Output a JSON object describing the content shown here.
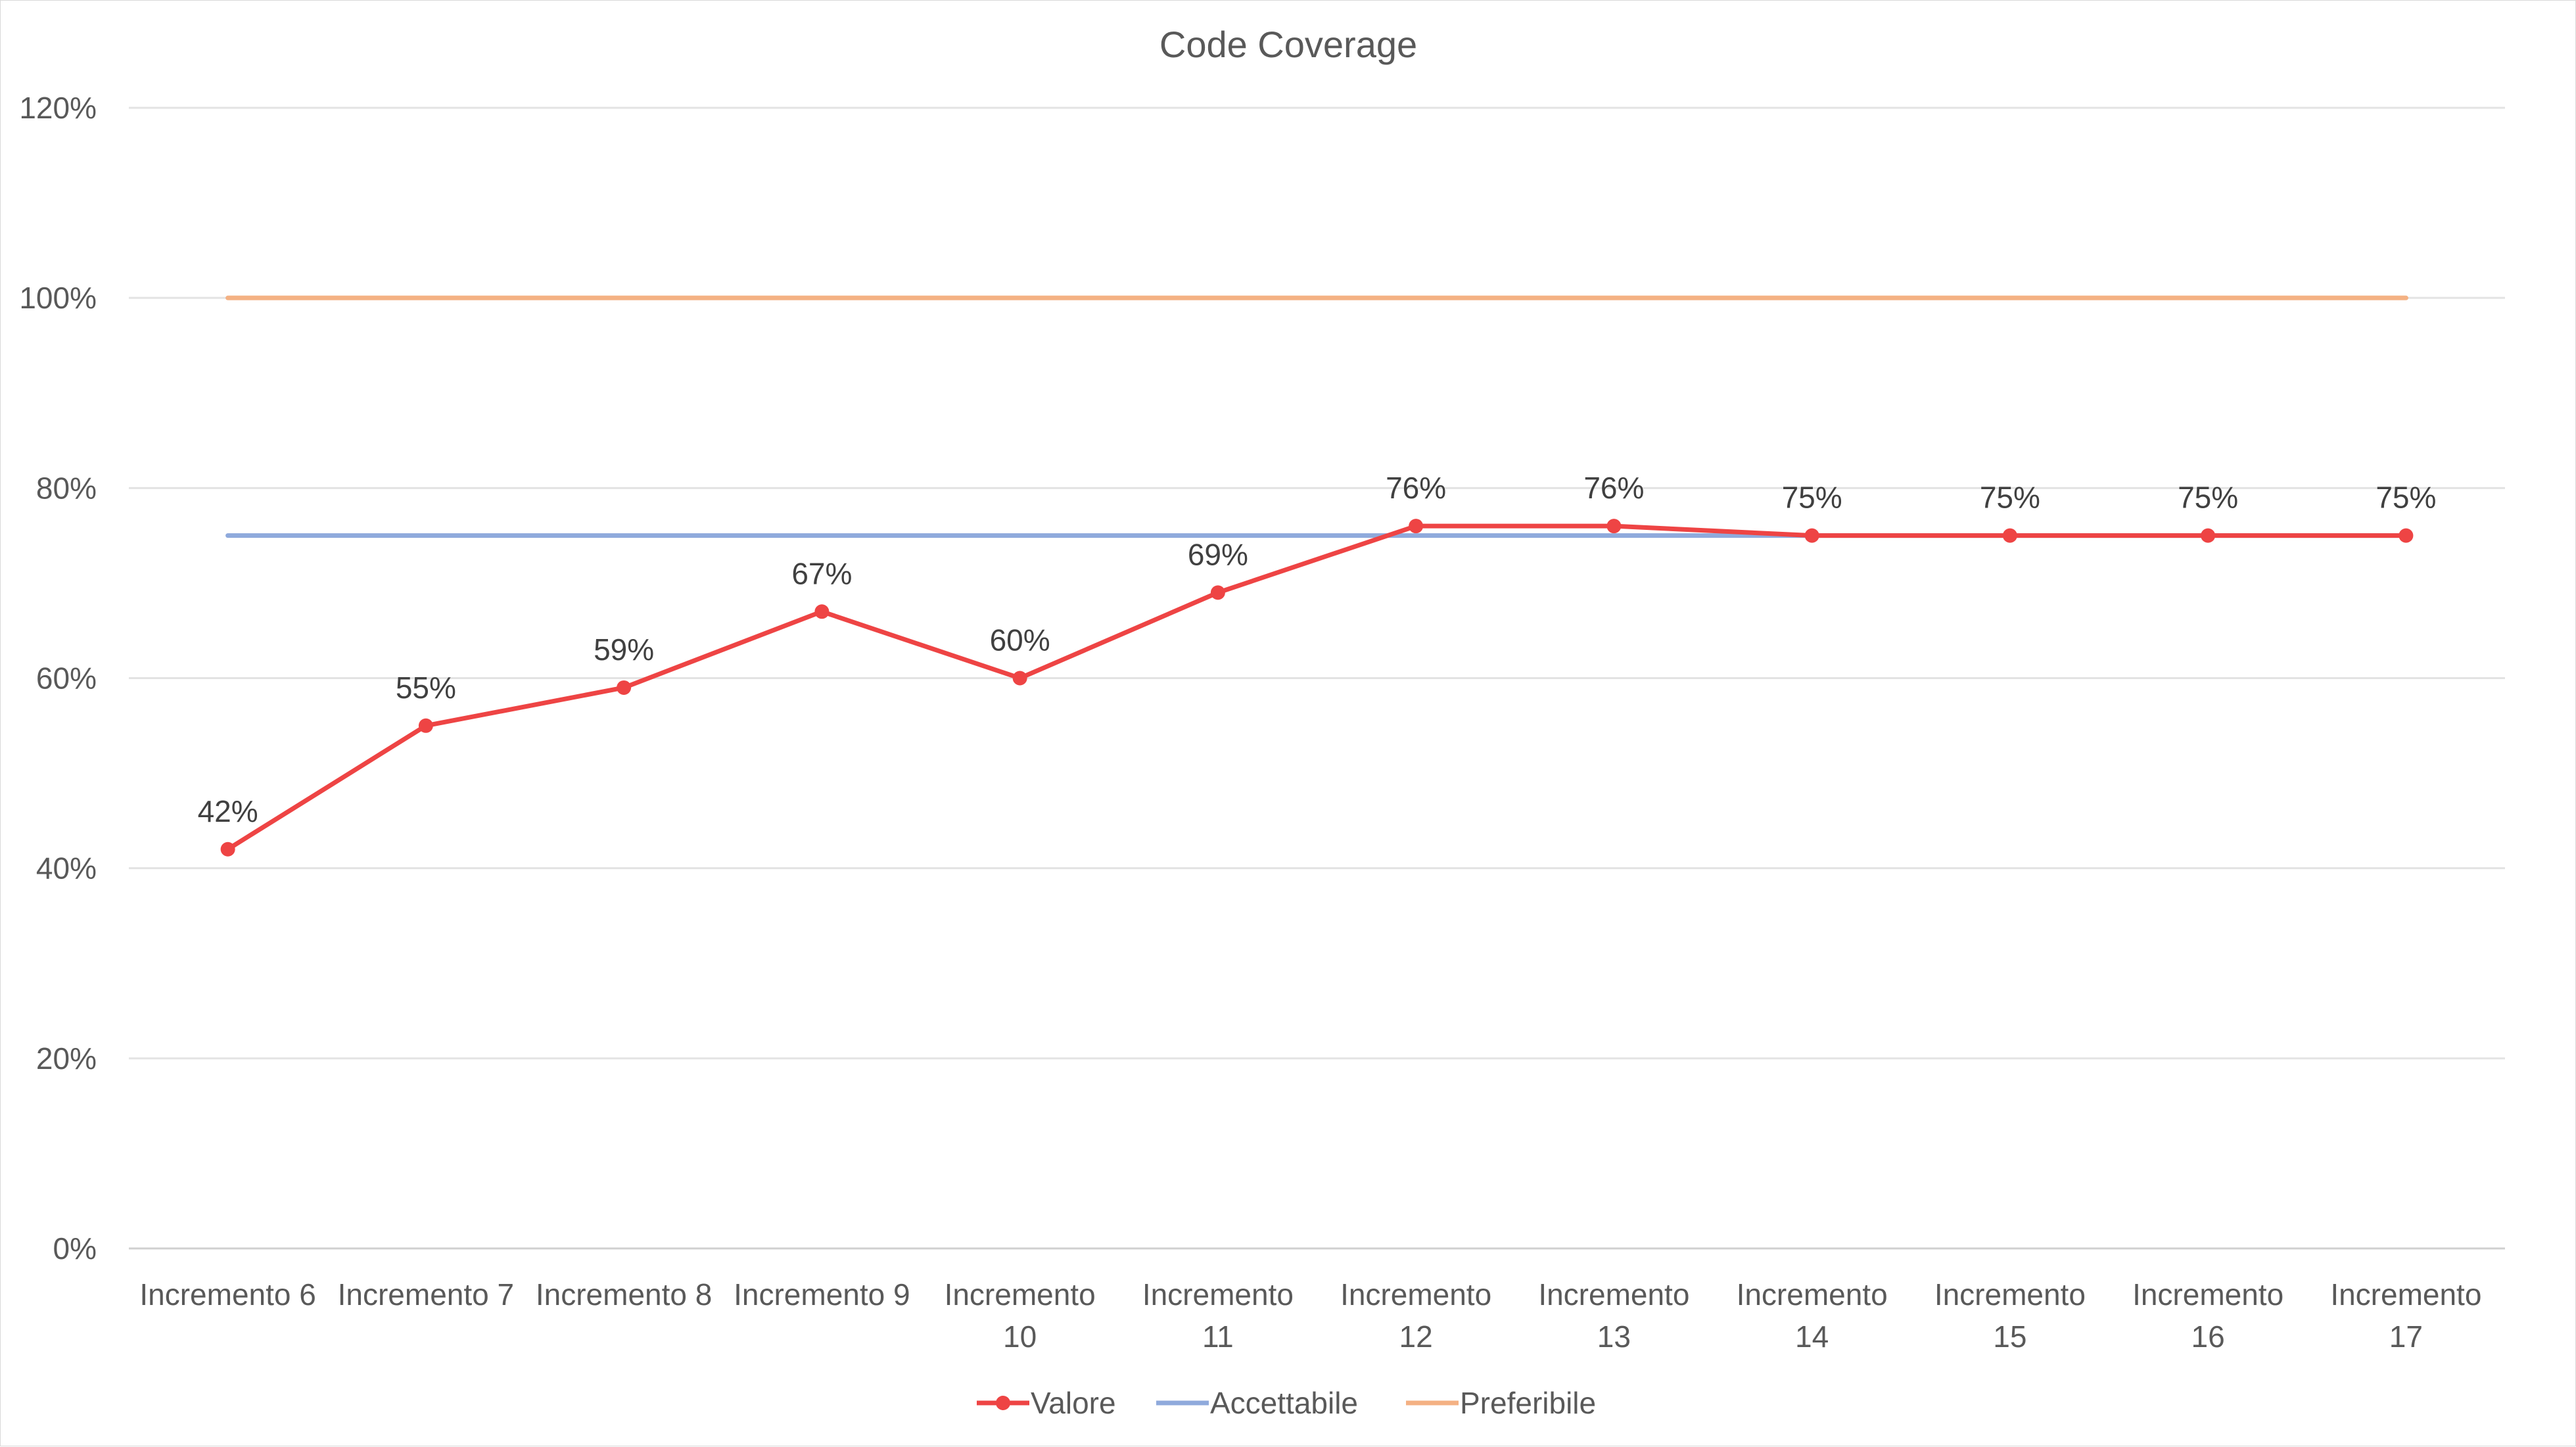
{
  "chart_data": {
    "type": "line",
    "title": "Code Coverage",
    "xlabel": "",
    "ylabel": "",
    "categories": [
      [
        "Incremento 6"
      ],
      [
        "Incremento 7"
      ],
      [
        "Incremento 8"
      ],
      [
        "Incremento 9"
      ],
      [
        "Incremento",
        "10"
      ],
      [
        "Incremento",
        "11"
      ],
      [
        "Incremento",
        "12"
      ],
      [
        "Incremento",
        "13"
      ],
      [
        "Incremento",
        "14"
      ],
      [
        "Incremento",
        "15"
      ],
      [
        "Incremento",
        "16"
      ],
      [
        "Incremento",
        "17"
      ]
    ],
    "ylim": [
      0,
      120
    ],
    "yticks": [
      "0%",
      "20%",
      "40%",
      "60%",
      "80%",
      "100%",
      "120%"
    ],
    "grid": true,
    "legend_position": "bottom",
    "series": [
      {
        "name": "Valore",
        "color": "#ee4444",
        "markers": true,
        "values": [
          42,
          55,
          59,
          67,
          60,
          69,
          76,
          76,
          75,
          75,
          75,
          75
        ],
        "labels": [
          "42%",
          "55%",
          "59%",
          "67%",
          "60%",
          "69%",
          "76%",
          "76%",
          "75%",
          "75%",
          "75%",
          "75%"
        ]
      },
      {
        "name": "Accettabile",
        "color": "#8faadc",
        "markers": false,
        "values": [
          75,
          75,
          75,
          75,
          75,
          75,
          75,
          75,
          75,
          75,
          75,
          75
        ]
      },
      {
        "name": "Preferibile",
        "color": "#f4b183",
        "markers": false,
        "values": [
          100,
          100,
          100,
          100,
          100,
          100,
          100,
          100,
          100,
          100,
          100,
          100
        ]
      }
    ]
  }
}
